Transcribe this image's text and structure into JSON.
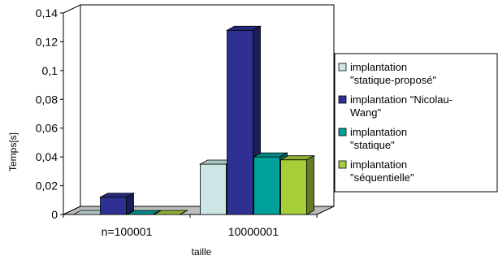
{
  "chart_data": {
    "type": "bar",
    "title": "",
    "xlabel": "taille",
    "ylabel": "Temps[s]",
    "categories": [
      "n=100001",
      "10000001"
    ],
    "ylim": [
      0,
      0.14
    ],
    "yticks": [
      0,
      0.02,
      0.04,
      0.06,
      0.08,
      0.1,
      0.12,
      0.14
    ],
    "ytick_labels": [
      "0",
      "0,02",
      "0,04",
      "0,06",
      "0,08",
      "0,1",
      "0,12",
      "0,14"
    ],
    "grid": false,
    "legend_position": "right",
    "three_d": true,
    "series": [
      {
        "name": "implantation \"statique-proposé\"",
        "legend_lines": [
          "implantation",
          "\"statique-proposé\""
        ],
        "color": "#cce6e6",
        "values": [
          0.0,
          0.035
        ]
      },
      {
        "name": "implantation \"Nicolau-Wang\"",
        "legend_lines": [
          "implantation \"Nicolau-",
          "Wang\""
        ],
        "color": "#2e3192",
        "values": [
          0.012,
          0.128
        ]
      },
      {
        "name": "implantation \"statique\"",
        "legend_lines": [
          "implantation",
          "\"statique\""
        ],
        "color": "#00a19a",
        "values": [
          0.0,
          0.04
        ]
      },
      {
        "name": "implantation \"séquentielle\"",
        "legend_lines": [
          "implantation",
          "\"séquentielle\""
        ],
        "color": "#a6ce39",
        "values": [
          0.0,
          0.038
        ]
      }
    ]
  }
}
